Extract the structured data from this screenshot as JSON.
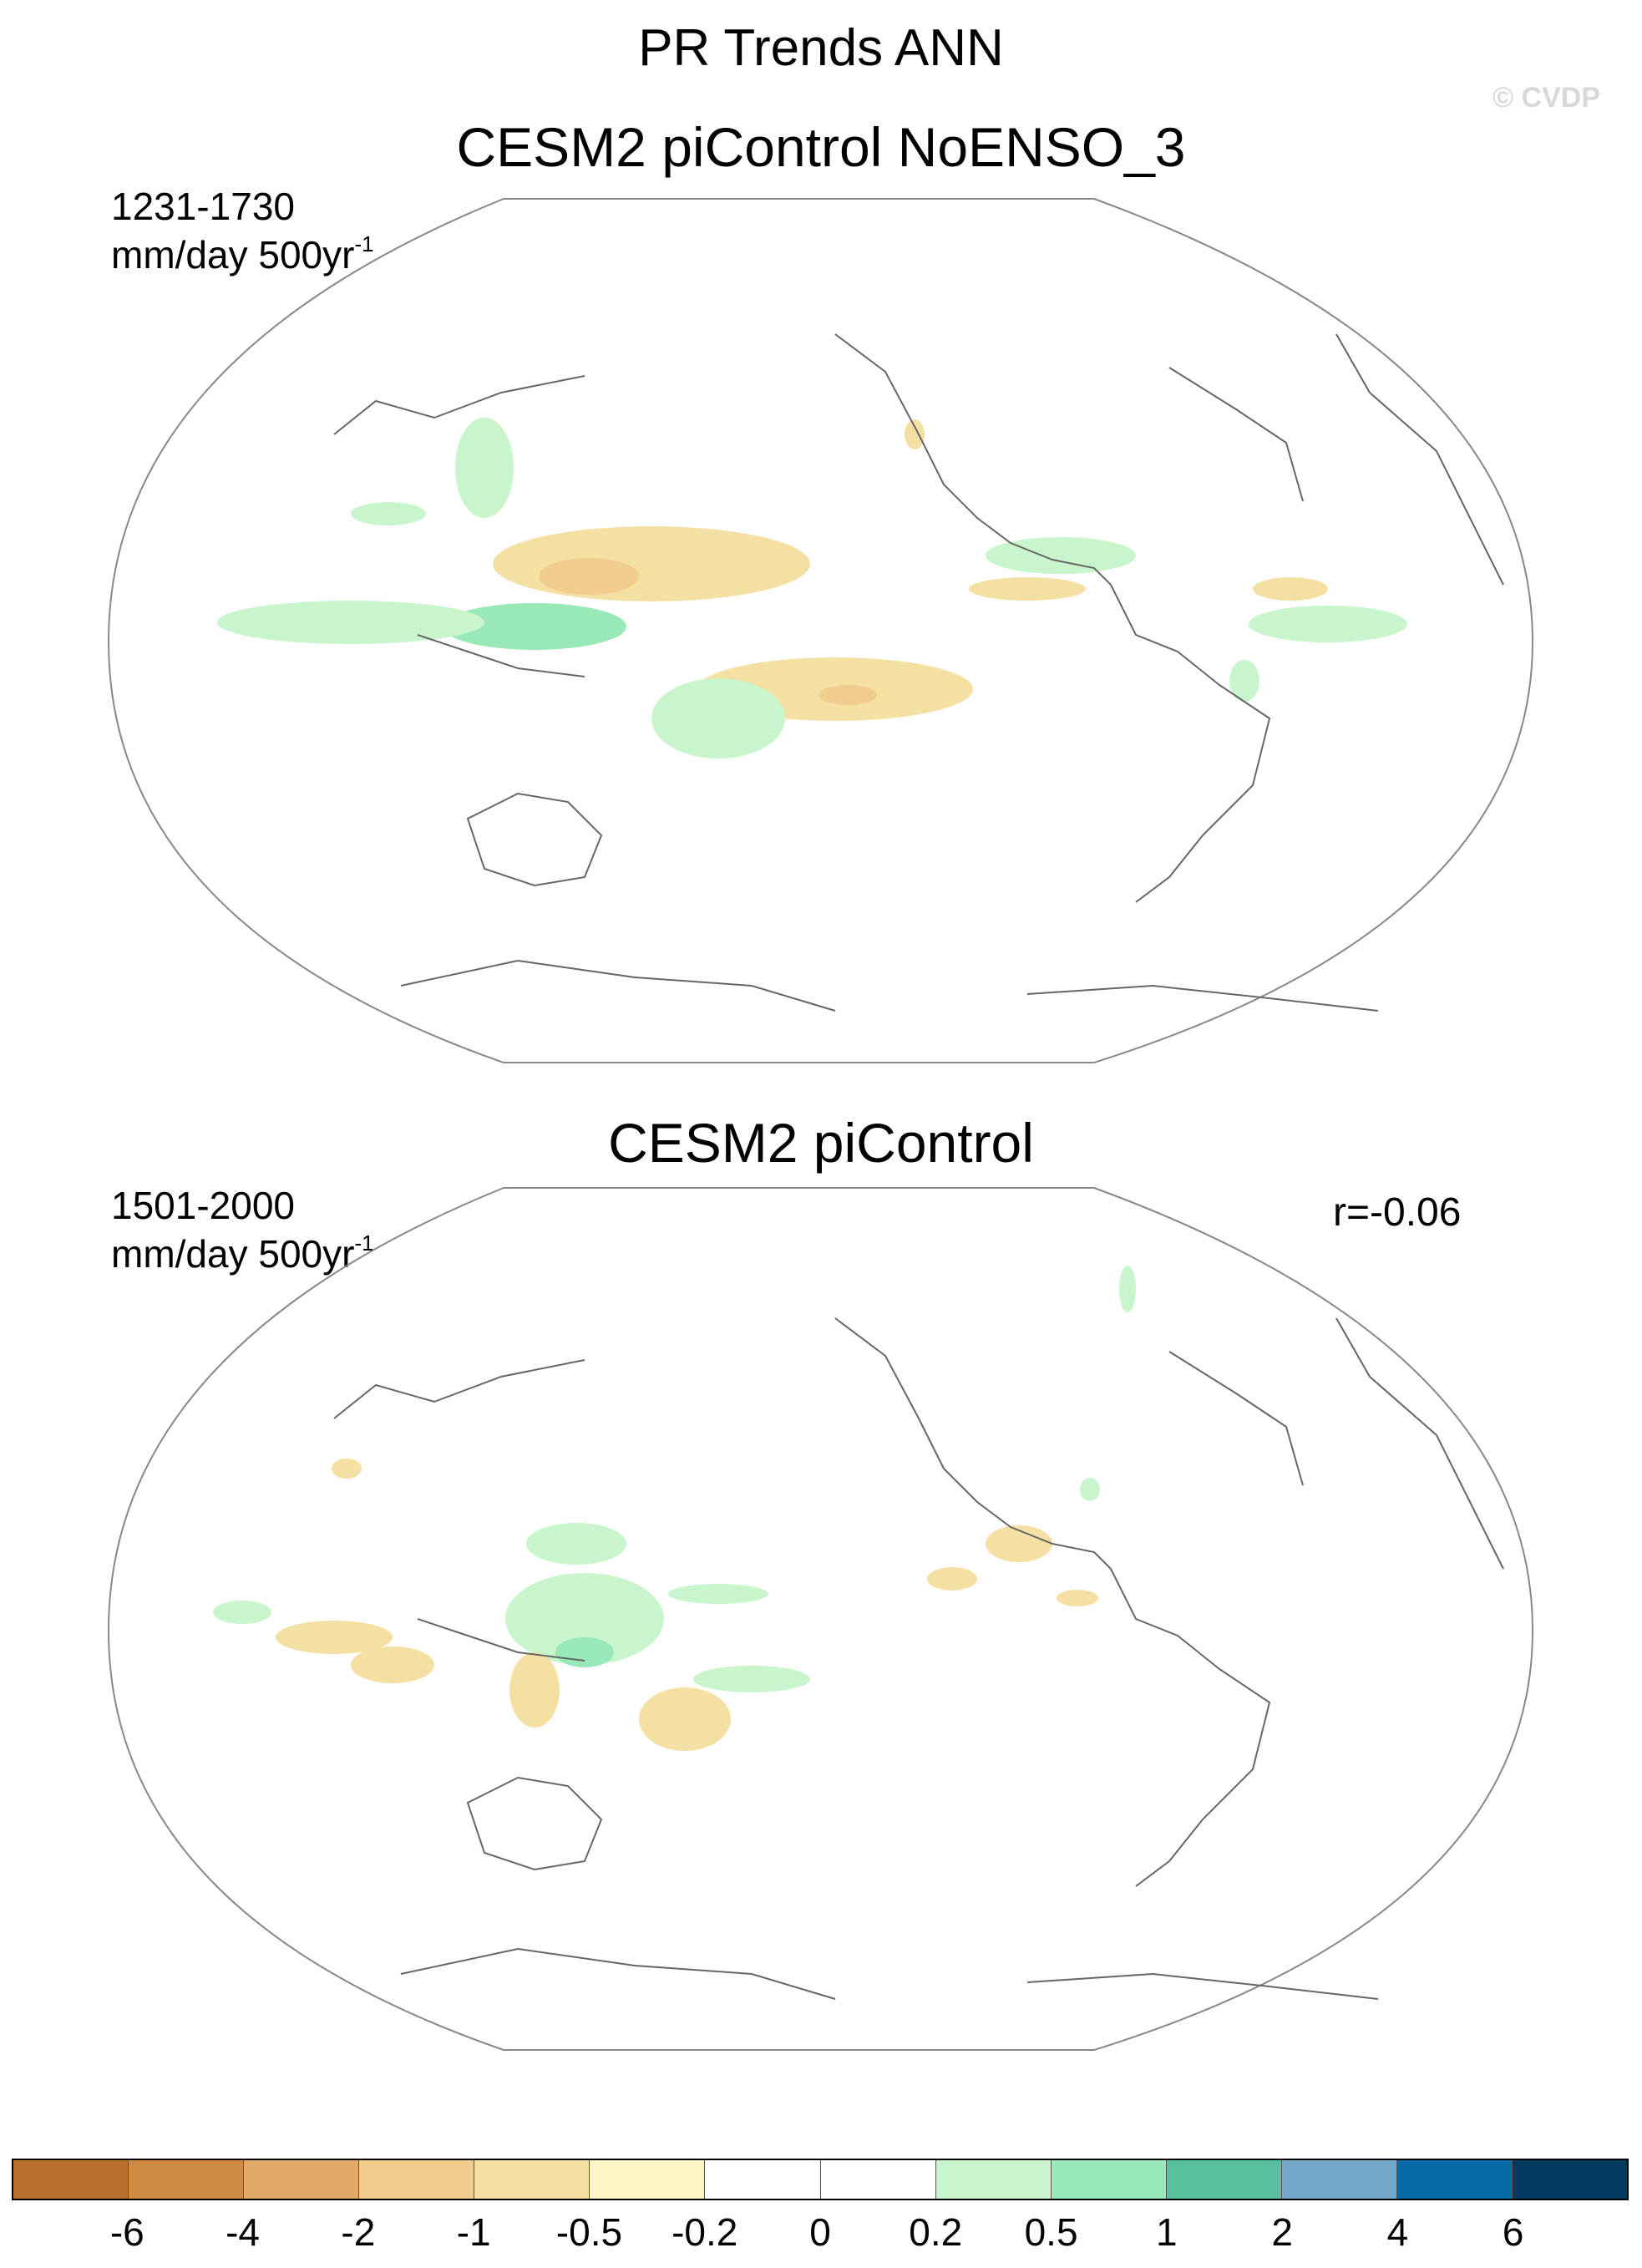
{
  "title": "PR Trends ANN",
  "watermark": "© CVDP",
  "panels": [
    {
      "title": "CESM2 piControl NoENSO_3",
      "years": "1231-1730",
      "units": "mm/day 500yr",
      "units_sup": "-1",
      "r": ""
    },
    {
      "title": "CESM2 piControl",
      "years": "1501-2000",
      "units": "mm/day 500yr",
      "units_sup": "-1",
      "r": "r=-0.06"
    }
  ],
  "colorbar": {
    "colors": [
      "#b8702e",
      "#cf8a44",
      "#e2aa6a",
      "#f2cc8c",
      "#f5e0a4",
      "#fff4c4",
      "#ffffff",
      "#ffffff",
      "#c8f5cc",
      "#98e8b8",
      "#58c0a0",
      "#72a8c8",
      "#0a6aa8",
      "#003a5c"
    ],
    "labels": [
      "-6",
      "-4",
      "-2",
      "-1",
      "-0.5",
      "-0.2",
      "0",
      "0.2",
      "0.5",
      "1",
      "2",
      "4",
      "6"
    ]
  }
}
